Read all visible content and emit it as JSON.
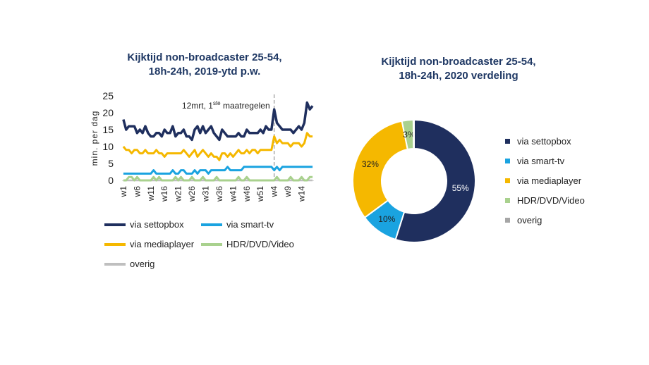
{
  "chart_data": [
    {
      "type": "line",
      "title": "Kijktijd non-broadcaster 25-54,\n18h-24h, 2019-ytd p.w.",
      "ylabel": "min. per dag",
      "ylim": [
        0,
        25
      ],
      "yticks": [
        "25",
        "20",
        "15",
        "10",
        "5",
        "0"
      ],
      "xtick_labels": [
        "w1",
        "w6",
        "w11",
        "w16",
        "w21",
        "w26",
        "w31",
        "w36",
        "w41",
        "w46",
        "w51",
        "w4",
        "w9",
        "w14"
      ],
      "annotation": {
        "text_main": "12mrt, 1",
        "text_sup": "ste",
        "text_tail": " maatregelen"
      },
      "series": [
        {
          "name": "via settopbox",
          "color": "#1f2f5e",
          "values": [
            18,
            15,
            16,
            16,
            16,
            14,
            15,
            14,
            16,
            14,
            13,
            13,
            14,
            14,
            13,
            15,
            14,
            14,
            16,
            13,
            14,
            14,
            15,
            13,
            13,
            12,
            15,
            16,
            14,
            16,
            14,
            15,
            16,
            14,
            13,
            12,
            15,
            14,
            13,
            13,
            13,
            13,
            14,
            13,
            13,
            15,
            14,
            14,
            14,
            14,
            15,
            14,
            16,
            15,
            15,
            21,
            17,
            16,
            15,
            15,
            15,
            15,
            14,
            15,
            16,
            15,
            17,
            23,
            21,
            22
          ]
        },
        {
          "name": "via smart-tv",
          "color": "#1aa3e0",
          "values": [
            2,
            2,
            2,
            2,
            2,
            2,
            2,
            2,
            2,
            2,
            2,
            3,
            2,
            2,
            2,
            2,
            2,
            2,
            3,
            2,
            2,
            3,
            3,
            2,
            2,
            2,
            3,
            2,
            3,
            3,
            3,
            2,
            3,
            3,
            3,
            3,
            3,
            3,
            4,
            3,
            3,
            3,
            3,
            3,
            4,
            4,
            4,
            4,
            4,
            4,
            4,
            4,
            4,
            4,
            4,
            3,
            4,
            3,
            4,
            4,
            4,
            4,
            4,
            4,
            4,
            4,
            4,
            4,
            4,
            4
          ]
        },
        {
          "name": "via mediaplayer",
          "color": "#f5b800",
          "values": [
            10,
            9,
            9,
            8,
            9,
            9,
            8,
            8,
            9,
            8,
            8,
            8,
            9,
            8,
            8,
            7,
            8,
            8,
            8,
            8,
            8,
            8,
            9,
            8,
            7,
            8,
            9,
            7,
            8,
            9,
            8,
            7,
            8,
            7,
            7,
            6,
            8,
            8,
            7,
            8,
            7,
            8,
            9,
            8,
            8,
            9,
            8,
            9,
            9,
            8,
            9,
            9,
            9,
            9,
            9,
            13,
            11,
            12,
            11,
            11,
            11,
            10,
            11,
            11,
            11,
            10,
            11,
            14,
            13,
            13
          ]
        },
        {
          "name": "HDR/DVD/Video",
          "color": "#a9d18e",
          "values": [
            0,
            0,
            1,
            1,
            0,
            1,
            0,
            0,
            0,
            0,
            0,
            1,
            0,
            1,
            0,
            0,
            0,
            0,
            0,
            1,
            0,
            1,
            0,
            0,
            0,
            1,
            0,
            0,
            0,
            1,
            0,
            0,
            0,
            0,
            1,
            0,
            0,
            0,
            0,
            0,
            0,
            0,
            1,
            0,
            0,
            1,
            0,
            0,
            0,
            0,
            0,
            0,
            0,
            0,
            0,
            0,
            1,
            0,
            0,
            0,
            0,
            1,
            0,
            0,
            0,
            1,
            0,
            0,
            1,
            1
          ]
        },
        {
          "name": "overig",
          "color": "#bfbfbf",
          "values": [
            0,
            0,
            0,
            0,
            0,
            0,
            0,
            0,
            0,
            0,
            0,
            0,
            0,
            0,
            0,
            0,
            0,
            0,
            0,
            0,
            0,
            0,
            0,
            0,
            0,
            0,
            0,
            0,
            0,
            0,
            0,
            0,
            0,
            0,
            0,
            0,
            0,
            0,
            0,
            0,
            0,
            0,
            0,
            0,
            0,
            0,
            0,
            0,
            0,
            0,
            0,
            0,
            0,
            0,
            0,
            0,
            0,
            0,
            0,
            0,
            0,
            0,
            0,
            0,
            0,
            0,
            0,
            0,
            0,
            0
          ]
        }
      ]
    },
    {
      "type": "pie",
      "title": "Kijktijd non-broadcaster 25-54,\n18h-24h, 2020 verdeling",
      "slices": [
        {
          "name": "via settopbox",
          "value": 55,
          "label": "55%",
          "color": "#1f2f5e",
          "label_color": "#ffffff"
        },
        {
          "name": "via smart-tv",
          "value": 10,
          "label": "10%",
          "color": "#1aa3e0",
          "label_color": "#1f1f1f"
        },
        {
          "name": "via mediaplayer",
          "value": 32,
          "label": "32%",
          "color": "#f5b800",
          "label_color": "#1f1f1f"
        },
        {
          "name": "HDR/DVD/Video",
          "value": 3,
          "label": "3%",
          "color": "#a9d18e",
          "label_color": "#1f1f1f"
        },
        {
          "name": "overig",
          "value": 0.2,
          "label": "",
          "color": "#a6a6a6",
          "label_color": "#1f1f1f"
        }
      ]
    }
  ]
}
